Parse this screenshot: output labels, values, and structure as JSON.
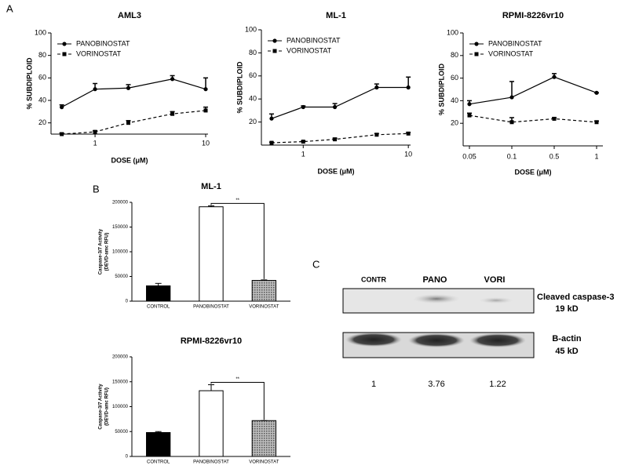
{
  "chart_data": [
    {
      "type": "line",
      "panel": "A",
      "title": "AML3",
      "xlabel": "DOSE (μM)",
      "ylabel": "% SUBDIPLOID",
      "xscale": "log",
      "xlim": [
        0.4,
        10.5
      ],
      "xticks": [
        1,
        10
      ],
      "ylim": [
        10,
        100
      ],
      "yticks": [
        20,
        40,
        60,
        80,
        100
      ],
      "x": [
        0.5,
        1,
        2,
        5,
        10
      ],
      "series": [
        {
          "name": "PANOBINOSTAT",
          "color": "#000000",
          "marker": "circle",
          "dash": false,
          "values": [
            34,
            50,
            51,
            59,
            50
          ],
          "errors": [
            2,
            5,
            3,
            3,
            10
          ]
        },
        {
          "name": "VORINOSTAT",
          "color": "#000000",
          "marker": "square",
          "dash": true,
          "values": [
            10,
            12,
            20,
            28,
            31
          ],
          "errors": [
            1,
            1,
            2,
            2,
            3
          ]
        }
      ]
    },
    {
      "type": "line",
      "title": "ML-1",
      "xlabel": "DOSE (μM)",
      "ylabel": "% SUBDIPLOID",
      "xscale": "log",
      "xlim": [
        0.4,
        10.5
      ],
      "xticks": [
        1,
        10
      ],
      "ylim": [
        0,
        100
      ],
      "yticks": [
        20,
        40,
        60,
        80,
        100
      ],
      "x": [
        0.5,
        1,
        2,
        5,
        10
      ],
      "series": [
        {
          "name": "PANOBINOSTAT",
          "color": "#000000",
          "marker": "circle",
          "dash": false,
          "values": [
            23,
            33,
            33,
            50,
            50
          ],
          "errors": [
            4,
            1,
            3,
            3,
            9
          ]
        },
        {
          "name": "VORINOSTAT",
          "color": "#000000",
          "marker": "square",
          "dash": true,
          "values": [
            2,
            3,
            5,
            9,
            10
          ],
          "errors": [
            0.5,
            0.5,
            1,
            1,
            1
          ]
        }
      ]
    },
    {
      "type": "line",
      "title": "RPMI-8226vr10",
      "xlabel": "DOSE (μM)",
      "ylabel": "% SUBDIPLOID",
      "categories": [
        "0.05",
        "0.1",
        "0.5",
        "1"
      ],
      "ylim": [
        0,
        100
      ],
      "yticks": [
        20,
        40,
        60,
        80,
        100
      ],
      "series": [
        {
          "name": "PANOBINOSTAT",
          "color": "#000000",
          "marker": "circle",
          "dash": false,
          "values": [
            37,
            43,
            61,
            47
          ],
          "errors": [
            3,
            14,
            3,
            0
          ]
        },
        {
          "name": "VORINOSTAT",
          "color": "#000000",
          "marker": "square",
          "dash": true,
          "values": [
            27,
            21,
            24,
            21
          ],
          "errors": [
            2,
            4,
            1,
            1
          ]
        }
      ]
    },
    {
      "type": "bar",
      "panel": "B",
      "title": "ML-1",
      "ylabel": [
        "Caspase-3/7 Activity",
        "(DEVD-amc RFU)"
      ],
      "annotation": "**",
      "categories": [
        "CONTROL",
        "PANOBINOSTAT",
        "VORINOSTAT"
      ],
      "values": [
        31000,
        191000,
        42000
      ],
      "errors": [
        5000,
        2000,
        1000
      ],
      "colors": [
        "#000000",
        "#ffffff",
        "#8c8c8c"
      ],
      "ylim": [
        0,
        200000
      ],
      "yticks": [
        0,
        50000,
        100000,
        150000,
        200000
      ]
    },
    {
      "type": "bar",
      "title": "RPMI-8226vr10",
      "ylabel": [
        "Caspase-3/7 Activity",
        "(DEVD-amc RFU)"
      ],
      "annotation": "**",
      "categories": [
        "CONTROL",
        "PANOBINOSTAT",
        "VORINOSTAT"
      ],
      "values": [
        48000,
        132000,
        72000
      ],
      "errors": [
        2000,
        12000,
        0
      ],
      "colors": [
        "#000000",
        "#ffffff",
        "#8c8c8c"
      ],
      "ylim": [
        0,
        200000
      ],
      "yticks": [
        0,
        50000,
        100000,
        150000,
        200000
      ]
    }
  ],
  "blot": {
    "panel": "C",
    "lanes": [
      "CONTR",
      "PANO",
      "VORI"
    ],
    "bands": [
      {
        "label": "Cleaved caspase-3",
        "size": "19 kD"
      },
      {
        "label": "B-actin",
        "size": "45 kD"
      }
    ],
    "ratios": [
      1,
      3.76,
      1.22
    ]
  }
}
